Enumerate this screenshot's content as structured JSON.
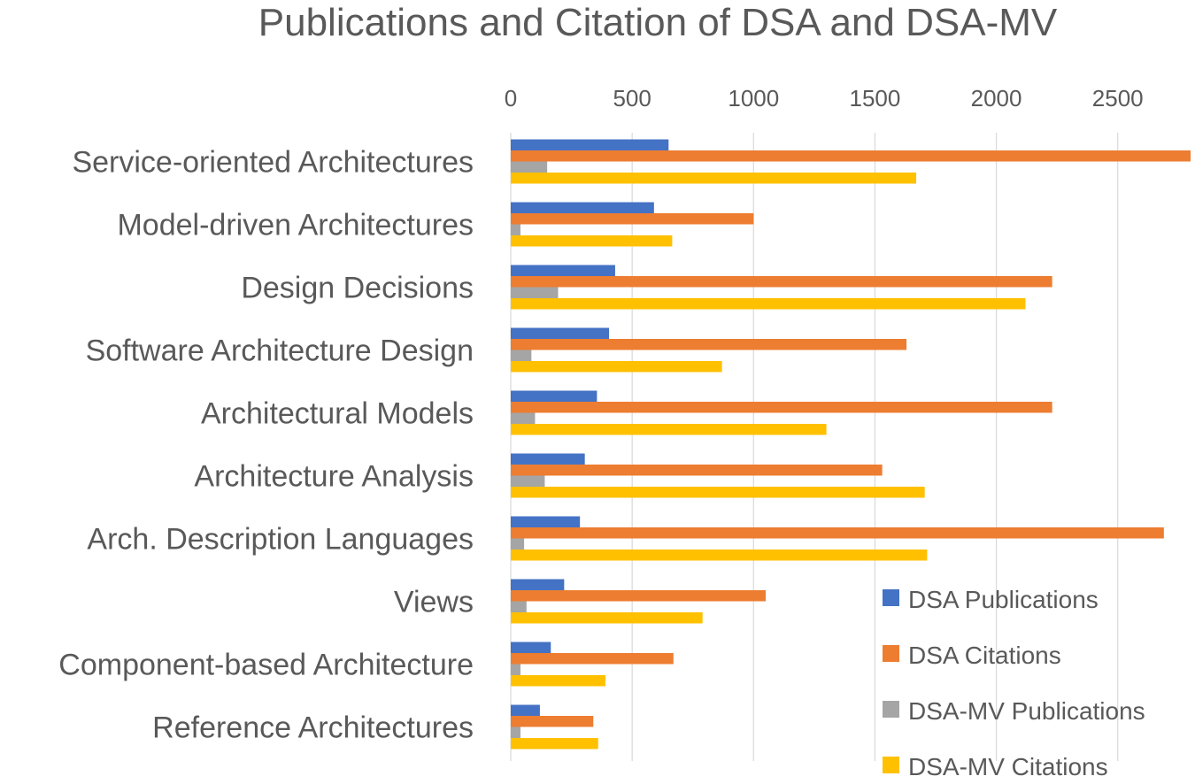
{
  "chart_data": {
    "type": "bar",
    "orientation": "horizontal",
    "title": "Publications and Citation of DSA and DSA-MV",
    "xlabel": "",
    "ylabel": "",
    "xlim": [
      0,
      2800
    ],
    "x_ticks": [
      "0",
      "500",
      "1000",
      "1500",
      "2000",
      "2500"
    ],
    "x_tick_values": [
      0,
      500,
      1000,
      1500,
      2000,
      2500
    ],
    "x_axis_position": "top",
    "grid": true,
    "legend_position": "bottom-right",
    "categories": [
      "Service-oriented Architectures",
      "Model-driven Architectures",
      "Design Decisions",
      "Software Architecture Design",
      "Architectural Models",
      "Architecture Analysis",
      "Arch. Description Languages",
      "Views",
      "Component-based Architecture",
      "Reference Architectures"
    ],
    "series": [
      {
        "name": "DSA Publications",
        "color": "#4472C4",
        "values": [
          650,
          590,
          430,
          405,
          355,
          305,
          285,
          220,
          165,
          120
        ]
      },
      {
        "name": "DSA Citations",
        "color": "#ED7D31",
        "values": [
          2800,
          1000,
          2230,
          1630,
          2230,
          1530,
          2690,
          1050,
          670,
          340
        ]
      },
      {
        "name": "DSA-MV Publications",
        "color": "#A5A5A5",
        "values": [
          150,
          40,
          195,
          85,
          100,
          140,
          55,
          65,
          40,
          40
        ]
      },
      {
        "name": "DSA-MV Citations",
        "color": "#FFC000",
        "values": [
          1670,
          665,
          2120,
          870,
          1300,
          1705,
          1715,
          790,
          390,
          360
        ]
      }
    ]
  }
}
